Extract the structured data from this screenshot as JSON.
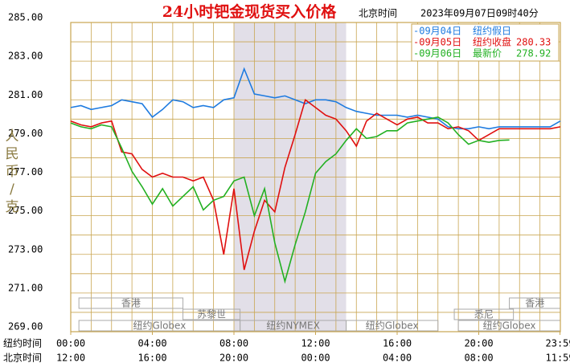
{
  "chart_data": {
    "type": "line",
    "title": "24小时钯金现货买入价格",
    "subtitle": "北京时间",
    "timestamp": "2023年09月07日09时40分",
    "ylabel": "人民币/克",
    "row_labels": [
      "纽约时间",
      "北京时间"
    ],
    "beijing_tick_labels": [
      "12:00",
      "16:00",
      "20:00",
      "00:00",
      "04:00",
      "08:00",
      "11:59"
    ],
    "sessions": [
      "香港",
      "香港",
      "苏黎世",
      "悉尼",
      "纽约Globex",
      "纽约NYMEX",
      "纽约Globex",
      "纽约Globex"
    ],
    "x": [
      0,
      0.5,
      1,
      1.5,
      2,
      2.5,
      3,
      3.5,
      4,
      4.5,
      5,
      5.5,
      6,
      6.5,
      7,
      7.5,
      8,
      8.5,
      9,
      9.5,
      10,
      10.5,
      11,
      11.5,
      12,
      12.5,
      13,
      13.5,
      14,
      14.5,
      15,
      15.5,
      16,
      16.5,
      17,
      17.5,
      18,
      18.5,
      19,
      19.5,
      20,
      20.5,
      21,
      21.5,
      22,
      22.5,
      23,
      23.5,
      24
    ],
    "xlim": [
      0,
      24
    ],
    "xticks": [
      {
        "value": 0,
        "label": "00:00"
      },
      {
        "value": 4,
        "label": "04:00"
      },
      {
        "value": 8,
        "label": "08:00"
      },
      {
        "value": 12,
        "label": "12:00"
      },
      {
        "value": 16,
        "label": "16:00"
      },
      {
        "value": 20,
        "label": "20:00"
      },
      {
        "value": 23.983,
        "label": "23:59"
      }
    ],
    "ylim": [
      269,
      285
    ],
    "yticks": [
      {
        "value": 269,
        "label": "269.00"
      },
      {
        "value": 271,
        "label": "271.00"
      },
      {
        "value": 273,
        "label": "273.00"
      },
      {
        "value": 275,
        "label": "275.00"
      },
      {
        "value": 277,
        "label": "277.00"
      },
      {
        "value": 279,
        "label": "279.00"
      },
      {
        "value": 281,
        "label": "281.00"
      },
      {
        "value": 283,
        "label": "283.00"
      },
      {
        "value": 285,
        "label": "285.00"
      }
    ],
    "shaded": [
      8,
      13.5
    ],
    "grid": true,
    "series": [
      {
        "name": "-09月04日",
        "note": "纽约假日",
        "color": "#1e7be0",
        "values": [
          280.6,
          280.7,
          280.5,
          280.6,
          280.7,
          281.0,
          280.9,
          280.8,
          280.1,
          280.5,
          281.0,
          280.9,
          280.6,
          280.7,
          280.6,
          281.0,
          281.1,
          282.6,
          281.3,
          281.2,
          281.1,
          281.2,
          281.0,
          280.8,
          281.0,
          281.0,
          280.9,
          280.6,
          280.4,
          280.3,
          280.2,
          280.2,
          280.2,
          280.1,
          280.2,
          280.1,
          280.0,
          279.6,
          279.5,
          279.5,
          279.6,
          279.5,
          279.6,
          279.6,
          279.6,
          279.6,
          279.6,
          279.6,
          279.9
        ]
      },
      {
        "name": "-09月05日",
        "note": "纽约收盘",
        "last": 280.33,
        "color": "#e01010",
        "values": [
          279.9,
          279.7,
          279.6,
          279.8,
          279.9,
          278.3,
          278.2,
          277.4,
          277.0,
          277.2,
          277.0,
          277.0,
          276.8,
          277.0,
          275.8,
          273.0,
          276.4,
          272.2,
          274.2,
          275.8,
          275.2,
          277.5,
          279.2,
          281.0,
          280.6,
          280.2,
          280.0,
          279.4,
          278.6,
          279.9,
          280.3,
          280.0,
          279.7,
          280.0,
          280.1,
          279.8,
          279.8,
          279.5,
          279.6,
          279.4,
          278.9,
          279.2,
          279.5,
          279.5,
          279.5,
          279.5,
          279.5,
          279.5,
          279.6
        ]
      },
      {
        "name": "-09月06日",
        "note": "最新价",
        "last": 278.92,
        "color": "#22b022",
        "values": [
          279.8,
          279.6,
          279.5,
          279.7,
          279.6,
          278.5,
          277.3,
          276.5,
          275.6,
          276.4,
          275.5,
          276.0,
          276.5,
          275.3,
          275.8,
          276.0,
          276.8,
          277.0,
          275.0,
          276.4,
          273.6,
          271.6,
          273.5,
          275.2,
          277.2,
          277.8,
          278.2,
          278.9,
          279.5,
          279.0,
          279.1,
          279.4,
          279.4,
          279.8,
          279.9,
          280.0,
          280.1,
          279.8,
          279.2,
          278.7,
          278.9,
          278.8,
          278.9,
          278.92,
          null,
          null,
          null,
          null,
          null
        ]
      }
    ]
  }
}
